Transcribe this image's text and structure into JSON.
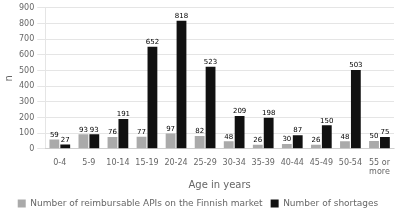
{
  "chart_data": {
    "type": "bar",
    "categories": [
      "0-4",
      "5-9",
      "10-14",
      "15-19",
      "20-24",
      "25-29",
      "30-34",
      "35-39",
      "40-44",
      "45-49",
      "50-54",
      "55 or\nmore"
    ],
    "series": [
      {
        "name": "Number of reimbursable APIs on the Finnish market",
        "color": "#aaaaaa",
        "values": [
          59,
          93,
          76,
          77,
          97,
          82,
          48,
          26,
          30,
          26,
          48,
          50
        ]
      },
      {
        "name": "Number of shortages",
        "color": "#111111",
        "values": [
          27,
          93,
          191,
          652,
          818,
          523,
          209,
          198,
          87,
          150,
          503,
          75
        ]
      }
    ],
    "xlabel": "Age in years",
    "ylabel": "n",
    "ylim": [
      0,
      900
    ],
    "yticks": [
      0,
      100,
      200,
      300,
      400,
      500,
      600,
      700,
      800,
      900
    ],
    "grid": true,
    "legend": "bottom",
    "data_labels": true
  }
}
